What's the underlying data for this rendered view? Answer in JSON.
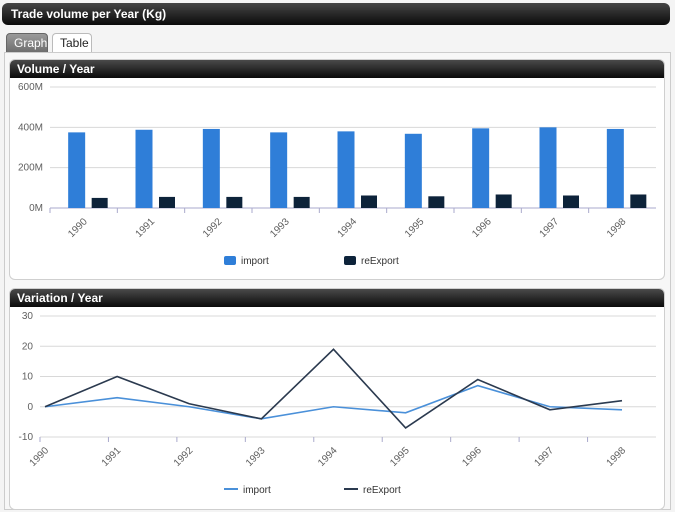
{
  "header": {
    "title": "Trade volume per Year (Kg)"
  },
  "tabs": [
    {
      "label": "Graph"
    },
    {
      "label": "Table"
    }
  ],
  "colors": {
    "import": "#2f7ed8",
    "reExport": "#0d233a",
    "importLine": "#4a90d9",
    "reExportLine": "#2b3a4f"
  },
  "chart_data": [
    {
      "type": "bar",
      "title": "Volume / Year",
      "categories": [
        "1990",
        "1991",
        "1992",
        "1993",
        "1994",
        "1995",
        "1996",
        "1997",
        "1998"
      ],
      "series": [
        {
          "name": "import",
          "values": [
            375000000,
            388000000,
            392000000,
            375000000,
            380000000,
            368000000,
            395000000,
            400000000,
            392000000
          ]
        },
        {
          "name": "reExport",
          "values": [
            50000000,
            55000000,
            55000000,
            55000000,
            62000000,
            58000000,
            67000000,
            62000000,
            67000000
          ]
        }
      ],
      "ylim": [
        0,
        600000000
      ],
      "yticks": [
        "0M",
        "200M",
        "400M",
        "600M"
      ],
      "grid": true,
      "legend": "bottom-center"
    },
    {
      "type": "line",
      "title": "Variation / Year",
      "categories": [
        "1990",
        "1991",
        "1992",
        "1993",
        "1994",
        "1995",
        "1996",
        "1997",
        "1998"
      ],
      "series": [
        {
          "name": "import",
          "values": [
            0,
            3,
            0,
            -4,
            0,
            -2,
            7,
            0,
            -1
          ]
        },
        {
          "name": "reExport",
          "values": [
            0,
            10,
            1,
            -4,
            19,
            -7,
            9,
            -1,
            2
          ]
        }
      ],
      "ylim": [
        -10,
        30
      ],
      "yticks": [
        "-10",
        "0",
        "10",
        "20",
        "30"
      ],
      "grid": true,
      "legend": "bottom-center"
    }
  ]
}
